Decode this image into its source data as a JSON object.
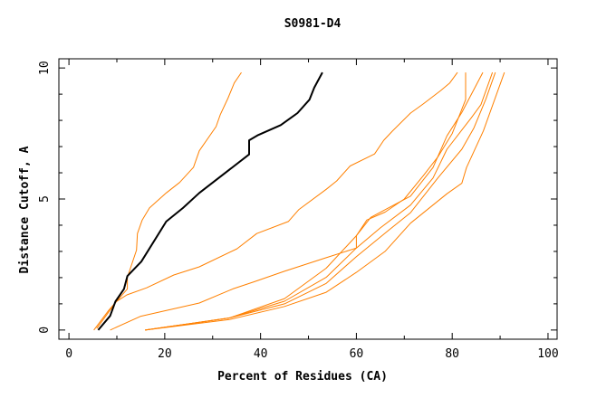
{
  "chart_data": {
    "type": "line",
    "title": "S0981-D4",
    "xlabel": "Percent of Residues (CA)",
    "ylabel": "Distance Cutoff, A",
    "xlim": [
      -2.1,
      101.9
    ],
    "ylim": [
      -0.35,
      10.35
    ],
    "xticks": [
      0,
      20,
      40,
      60,
      80,
      100
    ],
    "yticks": [
      0,
      5,
      10
    ],
    "grid": false,
    "colors": {
      "highlight": "#000000",
      "others": "#ff8000"
    },
    "series": [
      {
        "name": "curve-1",
        "color": "#ff8000",
        "points": [
          [
            5.2,
            0
          ],
          [
            8.3,
            0.75
          ],
          [
            12.2,
            1.57
          ],
          [
            12.2,
            2.01
          ],
          [
            14.1,
            3.05
          ],
          [
            14.3,
            3.68
          ],
          [
            15.3,
            4.2
          ],
          [
            16.8,
            4.66
          ],
          [
            20.3,
            5.23
          ],
          [
            23.1,
            5.63
          ],
          [
            26.0,
            6.21
          ],
          [
            27.2,
            6.84
          ],
          [
            30.7,
            7.76
          ],
          [
            31.6,
            8.22
          ],
          [
            33.2,
            8.85
          ],
          [
            34.5,
            9.43
          ],
          [
            36.0,
            9.83
          ]
        ]
      },
      {
        "name": "curve-2",
        "color": "#ff8000",
        "points": [
          [
            5.8,
            0.06
          ],
          [
            9.9,
            1.09
          ],
          [
            12.1,
            1.34
          ],
          [
            16.2,
            1.61
          ],
          [
            21.9,
            2.1
          ],
          [
            27.2,
            2.41
          ],
          [
            35.1,
            3.1
          ],
          [
            39.2,
            3.68
          ],
          [
            45.8,
            4.14
          ],
          [
            48.0,
            4.6
          ],
          [
            53.7,
            5.37
          ],
          [
            55.9,
            5.69
          ],
          [
            58.7,
            6.26
          ],
          [
            63.8,
            6.72
          ],
          [
            65.7,
            7.24
          ],
          [
            67.5,
            7.59
          ],
          [
            71.3,
            8.28
          ],
          [
            73.9,
            8.62
          ],
          [
            77.6,
            9.14
          ],
          [
            79.5,
            9.43
          ],
          [
            81.1,
            9.83
          ]
        ]
      },
      {
        "name": "curve-3",
        "color": "#ff8000",
        "points": [
          [
            8.6,
            0
          ],
          [
            14.9,
            0.52
          ],
          [
            27.2,
            1.03
          ],
          [
            34.2,
            1.57
          ],
          [
            38.6,
            1.84
          ],
          [
            44.9,
            2.24
          ],
          [
            53.7,
            2.76
          ],
          [
            60.0,
            3.13
          ],
          [
            60.0,
            3.6
          ],
          [
            62.2,
            4.2
          ],
          [
            66,
            4.5
          ],
          [
            70,
            5.0
          ],
          [
            74,
            5.9
          ],
          [
            77,
            6.6
          ],
          [
            80,
            7.5
          ],
          [
            82.8,
            8.79
          ],
          [
            82.8,
            9.83
          ]
        ]
      },
      {
        "name": "curve-4",
        "color": "#ff8000",
        "points": [
          [
            15.9,
            0
          ],
          [
            33.5,
            0.46
          ],
          [
            45,
            1.2
          ],
          [
            53.7,
            2.36
          ],
          [
            60,
            3.6
          ],
          [
            63,
            4.3
          ],
          [
            71.3,
            5.11
          ],
          [
            76,
            6.2
          ],
          [
            78.9,
            7.41
          ],
          [
            82,
            8.3
          ],
          [
            86.4,
            9.83
          ]
        ]
      },
      {
        "name": "curve-5",
        "color": "#ff8000",
        "points": [
          [
            15.9,
            0
          ],
          [
            33.5,
            0.46
          ],
          [
            45,
            1.1
          ],
          [
            53.7,
            2.01
          ],
          [
            60,
            3.13
          ],
          [
            65,
            3.9
          ],
          [
            71.3,
            4.77
          ],
          [
            76,
            5.8
          ],
          [
            78.9,
            6.9
          ],
          [
            84,
            8.1
          ],
          [
            86,
            8.6
          ],
          [
            88.4,
            9.83
          ]
        ]
      },
      {
        "name": "curve-6",
        "color": "#ff8000",
        "points": [
          [
            15.9,
            0
          ],
          [
            33.5,
            0.46
          ],
          [
            45,
            1.0
          ],
          [
            53.7,
            1.78
          ],
          [
            60,
            2.8
          ],
          [
            66,
            3.7
          ],
          [
            71.3,
            4.48
          ],
          [
            77,
            5.8
          ],
          [
            82,
            6.9
          ],
          [
            84.5,
            7.7
          ],
          [
            87,
            8.8
          ],
          [
            89,
            9.83
          ]
        ]
      },
      {
        "name": "curve-7",
        "color": "#ff8000",
        "points": [
          [
            15.9,
            0
          ],
          [
            33.5,
            0.4
          ],
          [
            45,
            0.9
          ],
          [
            53.7,
            1.44
          ],
          [
            60,
            2.2
          ],
          [
            66,
            3.0
          ],
          [
            71.3,
            4.08
          ],
          [
            78.9,
            5.2
          ],
          [
            82,
            5.6
          ],
          [
            83,
            6.2
          ],
          [
            86.5,
            7.6
          ],
          [
            90.9,
            9.83
          ]
        ]
      },
      {
        "name": "highlight-curve",
        "color": "#000000",
        "points": [
          [
            6.1,
            0
          ],
          [
            8.6,
            0.54
          ],
          [
            9.7,
            1.09
          ],
          [
            11.5,
            1.57
          ],
          [
            12.2,
            2.06
          ],
          [
            15.1,
            2.61
          ],
          [
            20.3,
            4.14
          ],
          [
            23.8,
            4.66
          ],
          [
            27.2,
            5.23
          ],
          [
            37.6,
            6.7
          ],
          [
            37.6,
            7.24
          ],
          [
            39.5,
            7.44
          ],
          [
            44.2,
            7.82
          ],
          [
            47.7,
            8.28
          ],
          [
            50.2,
            8.79
          ],
          [
            51.2,
            9.25
          ],
          [
            52.9,
            9.83
          ]
        ]
      }
    ]
  }
}
